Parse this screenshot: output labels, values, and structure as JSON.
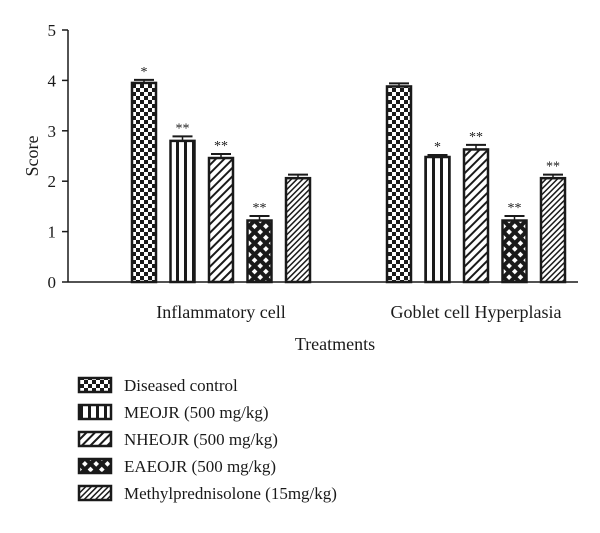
{
  "chart_data": {
    "type": "bar",
    "title": "",
    "xlabel": "Treatments",
    "ylabel": "Score",
    "ylim": [
      0,
      5
    ],
    "yticks": [
      "0",
      "1",
      "2",
      "3",
      "4",
      "5"
    ],
    "grid": false,
    "legend_position": "bottom",
    "categories": [
      "Inflammatory cell",
      "Goblet cell Hyperplasia"
    ],
    "series": [
      {
        "name": "Diseased control",
        "pattern": "checker",
        "values": [
          3.95,
          3.88
        ],
        "errors": [
          0.06,
          0.06
        ],
        "significance": [
          "*",
          ""
        ]
      },
      {
        "name": "MEOJR (500 mg/kg)",
        "pattern": "vertical-stripes",
        "values": [
          2.8,
          2.48
        ],
        "errors": [
          0.09,
          0.04
        ],
        "significance": [
          "**",
          "*"
        ]
      },
      {
        "name": "NHEOJR (500 mg/kg)",
        "pattern": "diagonal-stripes",
        "values": [
          2.46,
          2.63
        ],
        "errors": [
          0.08,
          0.09
        ],
        "significance": [
          "**",
          "**"
        ]
      },
      {
        "name": "EAEOJR (500 mg/kg)",
        "pattern": "diamond-grid",
        "values": [
          1.22,
          1.22
        ],
        "errors": [
          0.09,
          0.09
        ],
        "significance": [
          "**",
          "**"
        ]
      },
      {
        "name": "Methylprednisolone (15mg/kg)",
        "pattern": "fine-diagonal",
        "values": [
          2.06,
          2.06
        ],
        "errors": [
          0.07,
          0.07
        ],
        "significance": [
          "",
          "**"
        ]
      }
    ],
    "colors": {
      "ink": "#1a1a1a",
      "background": "#ffffff"
    }
  }
}
